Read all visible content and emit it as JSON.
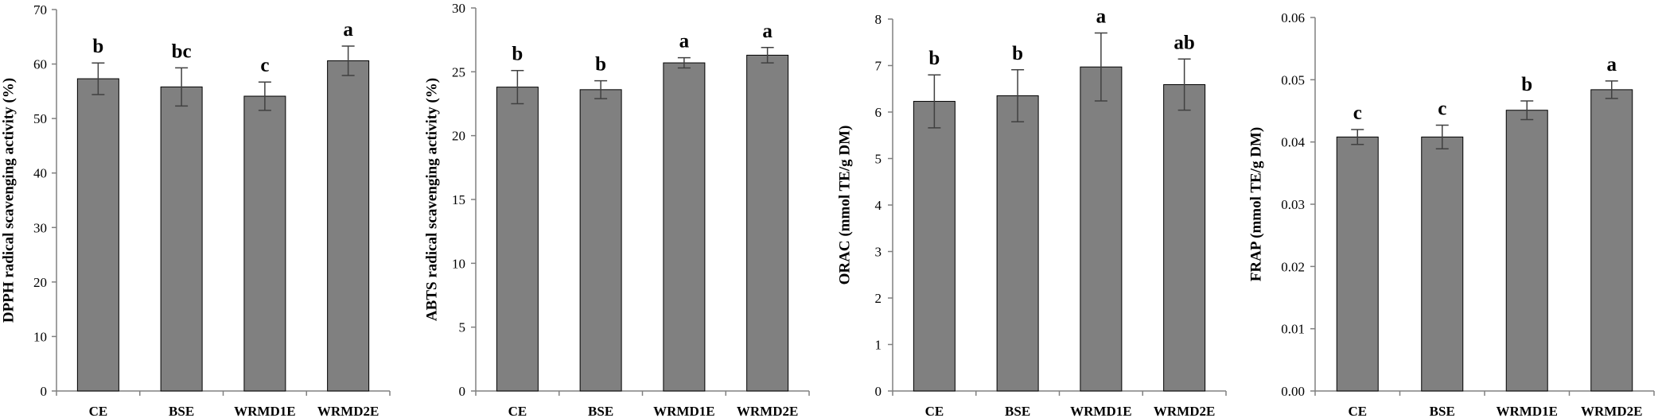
{
  "colors": {
    "bar": "#808080",
    "bar_stroke": "#000000",
    "axis": "#808080",
    "error": "#404040",
    "text": "#000000"
  },
  "chart_data": [
    {
      "type": "bar",
      "categories": [
        "CE",
        "BSE",
        "WRMD1E",
        "WRMD2E"
      ],
      "values": [
        57.3,
        55.8,
        54.1,
        60.6
      ],
      "errors": [
        2.9,
        3.5,
        2.6,
        2.7
      ],
      "letters": [
        "b",
        "bc",
        "c",
        "a"
      ],
      "ylabel": "DPPH radical scavenging activity (%)",
      "ylim": [
        0,
        70
      ],
      "yticks": [
        0,
        10,
        20,
        30,
        40,
        50,
        60,
        70
      ],
      "ytick_labels": [
        "0",
        "10",
        "20",
        "30",
        "40",
        "50",
        "60",
        "70"
      ]
    },
    {
      "type": "bar",
      "categories": [
        "CE",
        "BSE",
        "WRMD1E",
        "WRMD2E"
      ],
      "values": [
        23.8,
        23.6,
        25.7,
        26.3
      ],
      "errors": [
        1.3,
        0.7,
        0.4,
        0.6
      ],
      "letters": [
        "b",
        "b",
        "a",
        "a"
      ],
      "ylabel": "ABTS radical scavenging activity (%)",
      "ylim": [
        0,
        30
      ],
      "yticks": [
        0,
        5,
        10,
        15,
        20,
        25,
        30
      ],
      "ytick_labels": [
        "0",
        "5",
        "10",
        "15",
        "20",
        "25",
        "30"
      ]
    },
    {
      "type": "bar",
      "categories": [
        "CE",
        "BSE",
        "WRMD1E",
        "WRMD2E"
      ],
      "values": [
        6.23,
        6.35,
        6.97,
        6.59
      ],
      "errors": [
        0.57,
        0.56,
        0.73,
        0.55
      ],
      "letters": [
        "b",
        "b",
        "a",
        "ab"
      ],
      "ylabel": "ORAC (mmol TE/g DM)",
      "ylim": [
        0,
        8
      ],
      "yticks": [
        0,
        1,
        2,
        3,
        4,
        5,
        6,
        7,
        8
      ],
      "ytick_labels": [
        "0",
        "1",
        "2",
        "3",
        "4",
        "5",
        "6",
        "7",
        "8"
      ]
    },
    {
      "type": "bar",
      "categories": [
        "CE",
        "BSE",
        "WRMD1E",
        "WRMD2E"
      ],
      "values": [
        0.0408,
        0.0408,
        0.0451,
        0.0484
      ],
      "errors": [
        0.0012,
        0.0019,
        0.0015,
        0.0014
      ],
      "letters": [
        "c",
        "c",
        "b",
        "a"
      ],
      "ylabel": "FRAP (mmol TE/g DM)",
      "ylim": [
        0,
        0.06
      ],
      "yticks": [
        0,
        0.01,
        0.02,
        0.03,
        0.04,
        0.05,
        0.06
      ],
      "ytick_labels": [
        "0.00",
        "0.01",
        "0.02",
        "0.03",
        "0.04",
        "0.05",
        "0.06"
      ]
    }
  ]
}
